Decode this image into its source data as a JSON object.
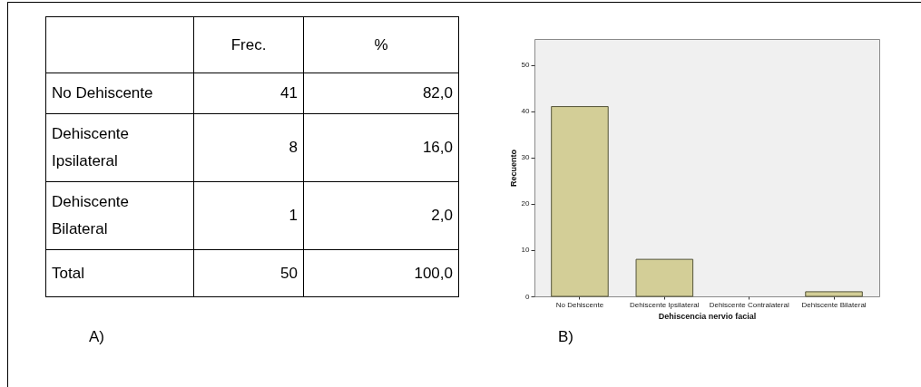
{
  "chart_data": [
    {
      "type": "other",
      "categories": [
        "No Dehiscente",
        "Dehiscente Ipsilateral",
        "Dehiscente Bilateral",
        "Total"
      ],
      "series": [
        {
          "name": "Frec.",
          "values": [
            41,
            8,
            1,
            50
          ],
          "value_labels": [
            "41",
            "8",
            "1",
            "50"
          ]
        },
        {
          "name": "%",
          "values": [
            82.0,
            16.0,
            2.0,
            100.0
          ],
          "value_labels": [
            "82,0",
            "16,0",
            "2,0",
            "100,0"
          ]
        }
      ],
      "annotations": [
        "A)"
      ]
    },
    {
      "type": "bar",
      "categories": [
        "No Dehiscente",
        "Dehiscente Ipsilateral",
        "Dehiscente Contralateral",
        "Dehiscente Bilateral"
      ],
      "values": [
        41,
        8,
        0,
        1
      ],
      "color": "#d3ce97",
      "xlabel": "Dehiscencia nervio facial",
      "ylabel": "Recuento",
      "ylim": [
        0,
        55.6
      ],
      "yticks": [
        0,
        10,
        20,
        30,
        40,
        50
      ],
      "annotations": [
        "B)"
      ]
    }
  ]
}
